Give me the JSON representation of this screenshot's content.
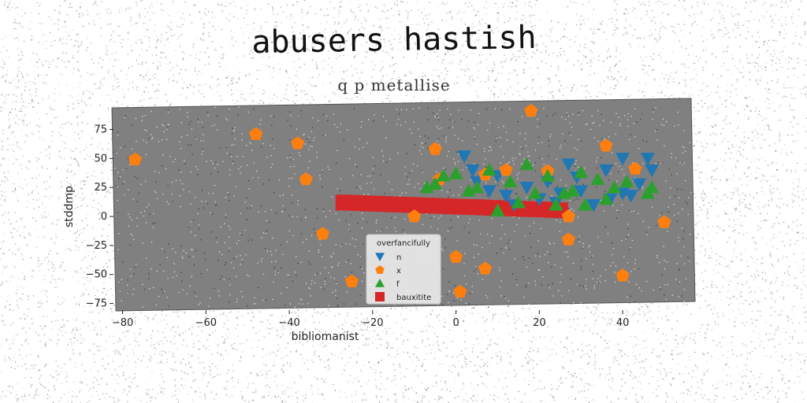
{
  "chart_data": {
    "type": "scatter",
    "title": "abusers hastish",
    "subtitle": "q p metallise",
    "xlabel": "bibliomanist",
    "ylabel": "stddmp",
    "xlim": [
      -82,
      57
    ],
    "ylim": [
      -78,
      95
    ],
    "xticks": [
      -80,
      -60,
      -40,
      -20,
      0,
      20,
      40
    ],
    "yticks": [
      -75,
      -50,
      -25,
      0,
      25,
      50,
      75
    ],
    "legend": {
      "title": "overfancifully",
      "placement": "lower-center"
    },
    "background": "#808080",
    "grid": false,
    "series": [
      {
        "name": "n",
        "marker": "triangle-down",
        "color": "#1f77b4",
        "x": [
          2,
          4,
          8,
          10,
          12,
          14,
          17,
          20,
          22,
          25,
          27,
          29,
          30,
          33,
          36,
          37,
          40,
          42,
          44,
          46,
          47,
          5,
          24,
          40
        ],
        "y": [
          52,
          40,
          22,
          35,
          18,
          10,
          25,
          15,
          30,
          20,
          45,
          34,
          22,
          10,
          40,
          15,
          20,
          18,
          28,
          50,
          40,
          30,
          12,
          50
        ]
      },
      {
        "name": "x",
        "marker": "pentagon",
        "color": "#ff7f0e",
        "x": [
          -77,
          -48,
          -38,
          -36,
          -32,
          -25,
          -5,
          -4,
          0,
          1,
          7,
          7,
          12,
          18,
          22,
          27,
          36,
          40,
          43,
          50,
          -10,
          27
        ],
        "y": [
          49,
          71,
          63,
          32,
          -15,
          -56,
          58,
          32,
          -35,
          -65,
          36,
          -45,
          40,
          91,
          39,
          -20,
          61,
          -51,
          41,
          -5,
          0,
          0
        ]
      },
      {
        "name": "f",
        "marker": "triangle-up",
        "color": "#2ca02c",
        "x": [
          -7,
          -5,
          -3,
          0,
          3,
          5,
          8,
          10,
          13,
          15,
          17,
          19,
          22,
          24,
          26,
          28,
          30,
          31,
          34,
          36,
          38,
          41,
          46,
          47,
          10
        ],
        "y": [
          25,
          28,
          35,
          37,
          22,
          25,
          40,
          5,
          30,
          12,
          45,
          20,
          35,
          10,
          20,
          22,
          38,
          10,
          32,
          15,
          25,
          30,
          20,
          25,
          5
        ]
      },
      {
        "name": "bauxitite",
        "marker": "square",
        "color": "#d62728",
        "x": [
          -27,
          -25,
          -23,
          -21,
          -19,
          -17,
          -15,
          -13,
          -11,
          -9,
          -7,
          -5,
          -3,
          -1,
          1,
          3,
          5,
          7,
          9,
          11,
          13,
          15,
          17,
          19,
          21,
          23,
          25
        ],
        "y": [
          12,
          11.8,
          11.5,
          11.2,
          11,
          10.7,
          10.4,
          10.2,
          10,
          9.7,
          9.4,
          9.2,
          9,
          8.7,
          8.4,
          8.2,
          8,
          7.7,
          7.4,
          7.2,
          7,
          6.7,
          6.4,
          6.2,
          6,
          5.7,
          5.4
        ]
      }
    ]
  }
}
